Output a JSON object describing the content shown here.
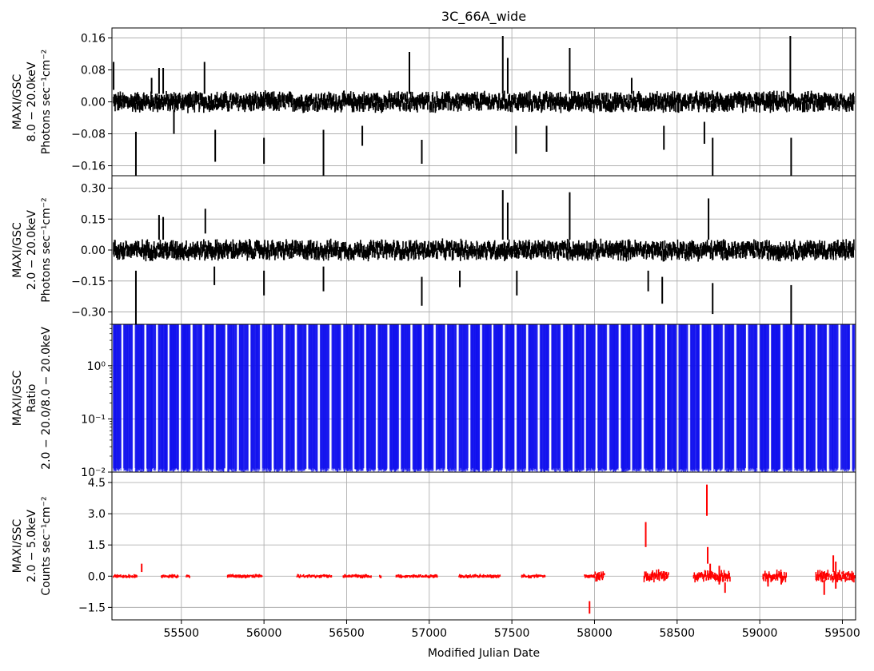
{
  "figure": {
    "title": "3C_66A_wide",
    "xlabel": "Modified Julian Date",
    "x_range": [
      55080,
      59580
    ],
    "x_ticks": [
      55500,
      56000,
      56500,
      57000,
      57500,
      58000,
      58500,
      59000,
      59500
    ],
    "x_tick_labels": [
      "55500",
      "56000",
      "56500",
      "57000",
      "57500",
      "58000",
      "58500",
      "59000",
      "59500"
    ],
    "grid": true
  },
  "chart_data": [
    {
      "id": "gsc-hard",
      "type": "scatter",
      "ylabel_lines": [
        "MAXI/GSC",
        "8.0 − 20.0keV",
        "Photons sec⁻¹cm⁻²"
      ],
      "ylim": [
        -0.185,
        0.185
      ],
      "y_ticks": [
        -0.16,
        -0.08,
        0.0,
        0.08,
        0.16
      ],
      "y_tick_labels": [
        "−0.16",
        "−0.08",
        "0.00",
        "0.08",
        "0.16"
      ],
      "color": "#000000",
      "error_bars": [
        {
          "x": 55090,
          "low": 0.03,
          "high": 0.1
        },
        {
          "x": 55225,
          "low": -0.19,
          "high": -0.075
        },
        {
          "x": 55320,
          "low": 0.02,
          "high": 0.06
        },
        {
          "x": 55365,
          "low": 0.02,
          "high": 0.085
        },
        {
          "x": 55390,
          "low": 0.02,
          "high": 0.085
        },
        {
          "x": 55455,
          "low": -0.08,
          "high": -0.02
        },
        {
          "x": 55640,
          "low": 0.02,
          "high": 0.1
        },
        {
          "x": 55705,
          "low": -0.15,
          "high": -0.07
        },
        {
          "x": 56000,
          "low": -0.155,
          "high": -0.09
        },
        {
          "x": 56360,
          "low": -0.19,
          "high": -0.07
        },
        {
          "x": 56595,
          "low": -0.11,
          "high": -0.06
        },
        {
          "x": 56880,
          "low": 0.02,
          "high": 0.125
        },
        {
          "x": 56955,
          "low": -0.155,
          "high": -0.095
        },
        {
          "x": 57445,
          "low": 0.02,
          "high": 0.165
        },
        {
          "x": 57475,
          "low": 0.02,
          "high": 0.11
        },
        {
          "x": 57525,
          "low": -0.13,
          "high": -0.06
        },
        {
          "x": 57710,
          "low": -0.125,
          "high": -0.06
        },
        {
          "x": 57850,
          "low": 0.02,
          "high": 0.135
        },
        {
          "x": 58225,
          "low": 0.02,
          "high": 0.06
        },
        {
          "x": 58420,
          "low": -0.12,
          "high": -0.06
        },
        {
          "x": 58665,
          "low": -0.105,
          "high": -0.05
        },
        {
          "x": 58715,
          "low": -0.19,
          "high": -0.09
        },
        {
          "x": 59185,
          "low": 0.02,
          "high": 0.165
        },
        {
          "x": 59190,
          "low": -0.19,
          "high": -0.09
        }
      ]
    },
    {
      "id": "gsc-full",
      "type": "scatter",
      "ylabel_lines": [
        "MAXI/GSC",
        "2.0 − 20.0keV",
        "Photons sec⁻¹cm⁻²"
      ],
      "ylim": [
        -0.36,
        0.36
      ],
      "y_ticks": [
        -0.3,
        -0.15,
        0.0,
        0.15,
        0.3
      ],
      "y_tick_labels": [
        "−0.30",
        "−0.15",
        "0.00",
        "0.15",
        "0.30"
      ],
      "color": "#000000",
      "error_bars": [
        {
          "x": 55225,
          "low": -0.37,
          "high": -0.1
        },
        {
          "x": 55365,
          "low": 0.05,
          "high": 0.17
        },
        {
          "x": 55390,
          "low": 0.05,
          "high": 0.16
        },
        {
          "x": 55645,
          "low": 0.08,
          "high": 0.2
        },
        {
          "x": 55700,
          "low": -0.17,
          "high": -0.08
        },
        {
          "x": 56000,
          "low": -0.22,
          "high": -0.1
        },
        {
          "x": 56360,
          "low": -0.2,
          "high": -0.08
        },
        {
          "x": 56955,
          "low": -0.27,
          "high": -0.13
        },
        {
          "x": 57185,
          "low": -0.18,
          "high": -0.1
        },
        {
          "x": 57445,
          "low": 0.05,
          "high": 0.29
        },
        {
          "x": 57475,
          "low": 0.05,
          "high": 0.23
        },
        {
          "x": 57530,
          "low": -0.22,
          "high": -0.1
        },
        {
          "x": 57850,
          "low": 0.05,
          "high": 0.28
        },
        {
          "x": 58325,
          "low": -0.2,
          "high": -0.1
        },
        {
          "x": 58410,
          "low": -0.26,
          "high": -0.13
        },
        {
          "x": 58690,
          "low": 0.05,
          "high": 0.25
        },
        {
          "x": 58715,
          "low": -0.31,
          "high": -0.16
        },
        {
          "x": 59190,
          "low": -0.36,
          "high": -0.17
        }
      ]
    },
    {
      "id": "gsc-ratio",
      "type": "scatter",
      "ylabel_lines": [
        "MAXI/GSC",
        "Ratio",
        "2.0 − 20.0/8.0 − 20.0keV"
      ],
      "y_scale": "log",
      "ylim": [
        0.01,
        6
      ],
      "y_ticks": [
        0.01,
        0.1,
        1
      ],
      "y_tick_labels": [
        "10⁻²",
        "10⁻¹",
        "10⁰"
      ],
      "color": "#1010ee"
    },
    {
      "id": "ssc",
      "type": "scatter",
      "ylabel_lines": [
        "MAXI/SSC",
        "2.0 − 5.0keV",
        "Counts sec⁻¹cm⁻²"
      ],
      "ylim": [
        -2.1,
        5.0
      ],
      "y_ticks": [
        -1.5,
        0.0,
        1.5,
        3.0,
        4.5
      ],
      "y_tick_labels": [
        "−1.5",
        "0.0",
        "1.5",
        "3.0",
        "4.5"
      ],
      "color": "#ff0000",
      "observation_windows": [
        [
          55090,
          55230
        ],
        [
          55380,
          55480
        ],
        [
          55530,
          55550
        ],
        [
          55780,
          55990
        ],
        [
          56200,
          56410
        ],
        [
          56480,
          56650
        ],
        [
          56700,
          56710
        ],
        [
          56800,
          57050
        ],
        [
          57180,
          57430
        ],
        [
          57560,
          57700
        ],
        [
          57940,
          58060
        ],
        [
          58300,
          58450
        ],
        [
          58600,
          58820
        ],
        [
          59020,
          59160
        ],
        [
          59340,
          59420
        ],
        [
          59430,
          59575
        ]
      ],
      "error_bars": [
        {
          "x": 55260,
          "low": 0.2,
          "high": 0.6
        },
        {
          "x": 57970,
          "low": -1.8,
          "high": -1.2
        },
        {
          "x": 58310,
          "low": 1.4,
          "high": 2.6
        },
        {
          "x": 58680,
          "low": 2.9,
          "high": 4.4
        },
        {
          "x": 58685,
          "low": 0.6,
          "high": 1.4
        },
        {
          "x": 58700,
          "low": -0.1,
          "high": 0.6
        },
        {
          "x": 58755,
          "low": -0.4,
          "high": 0.5
        },
        {
          "x": 58790,
          "low": -0.8,
          "high": -0.3
        },
        {
          "x": 59050,
          "low": -0.5,
          "high": 0.1
        },
        {
          "x": 59130,
          "low": -0.4,
          "high": 0.2
        },
        {
          "x": 59390,
          "low": -0.9,
          "high": -0.2
        },
        {
          "x": 59445,
          "low": 0.2,
          "high": 1.0
        },
        {
          "x": 59460,
          "low": -0.6,
          "high": 0.7
        }
      ]
    }
  ]
}
